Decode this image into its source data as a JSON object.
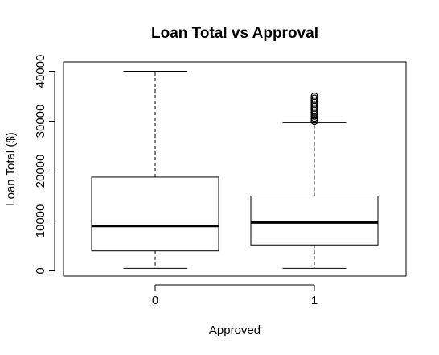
{
  "chart_data": {
    "type": "box",
    "title": "Loan Total vs Approval",
    "xlabel": "Approved",
    "ylabel": "Loan Total ($)",
    "categories": [
      "0",
      "1"
    ],
    "ylim": [
      0,
      41000
    ],
    "yticks": [
      0,
      10000,
      20000,
      30000,
      40000
    ],
    "grid": false,
    "boxes": [
      {
        "category": "0",
        "whisker_low": 500,
        "q1": 4000,
        "median": 9000,
        "q3": 18800,
        "whisker_high": 40000,
        "outliers": []
      },
      {
        "category": "1",
        "whisker_low": 500,
        "q1": 5200,
        "median": 9700,
        "q3": 15000,
        "whisker_high": 29700,
        "outliers": [
          30000,
          30300,
          30600,
          31000,
          31400,
          31800,
          32200,
          32600,
          33000,
          33400,
          33800,
          34200,
          34600,
          35000
        ]
      }
    ]
  }
}
